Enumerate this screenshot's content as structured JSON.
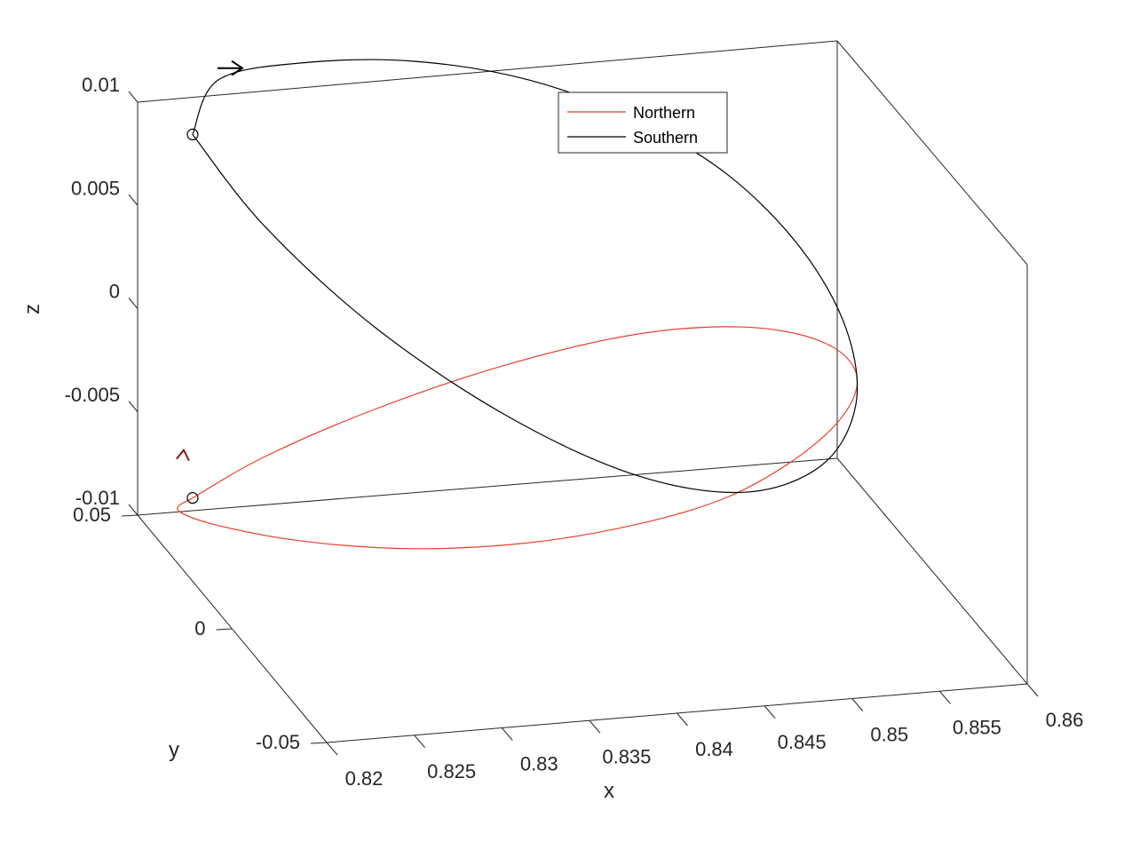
{
  "chart_data": {
    "type": "line",
    "projection": "3d",
    "xlabel": "x",
    "ylabel": "y",
    "zlabel": "z",
    "xlim": [
      0.82,
      0.86
    ],
    "ylim": [
      -0.05,
      0.05
    ],
    "zlim": [
      -0.01,
      0.01
    ],
    "x_ticks": [
      "0.82",
      "0.825",
      "0.83",
      "0.835",
      "0.84",
      "0.845",
      "0.85",
      "0.855",
      "0.86"
    ],
    "y_ticks": [
      "-0.05",
      "0",
      "0.05"
    ],
    "z_ticks": [
      "-0.01",
      "-0.005",
      "0",
      "0.005",
      "0.01"
    ],
    "grid": false,
    "legend_position": "top-right",
    "series": [
      {
        "name": "Northern",
        "color": "#e8402e",
        "description_points": "approximate 3D orbit samples (x, y, z)",
        "points": [
          [
            0.8226,
            0.045,
            -0.0088
          ],
          [
            0.8253,
            0.0322,
            -0.0056
          ],
          [
            0.83,
            0.0174,
            -0.002
          ],
          [
            0.836,
            0.0039,
            0.0012
          ],
          [
            0.8423,
            -0.0066,
            0.0034
          ],
          [
            0.8479,
            -0.0124,
            0.004
          ],
          [
            0.8523,
            -0.0125,
            0.003
          ],
          [
            0.8548,
            -0.0075,
            0.0008
          ],
          [
            0.8551,
            0.0004,
            -0.002
          ],
          [
            0.8535,
            0.0095,
            -0.005
          ],
          [
            0.8503,
            0.0185,
            -0.0078
          ],
          [
            0.846,
            0.0273,
            -0.0098
          ],
          [
            0.8408,
            0.0354,
            -0.0112
          ],
          [
            0.835,
            0.0419,
            -0.0118
          ],
          [
            0.8293,
            0.0469,
            -0.0116
          ],
          [
            0.8246,
            0.0497,
            -0.0108
          ],
          [
            0.8222,
            0.049,
            -0.0098
          ],
          [
            0.8226,
            0.045,
            -0.0088
          ]
        ],
        "start_marker": [
          0.8226,
          0.045,
          -0.0088
        ],
        "direction_arrow_at": [
          0.8226,
          0.0497,
          -0.007
        ]
      },
      {
        "name": "Southern",
        "color": "#000000",
        "points": [
          [
            0.8226,
            0.045,
            0.0088
          ],
          [
            0.8246,
            0.0497,
            0.0108
          ],
          [
            0.8293,
            0.0469,
            0.0116
          ],
          [
            0.835,
            0.0419,
            0.0118
          ],
          [
            0.8408,
            0.0354,
            0.0112
          ],
          [
            0.846,
            0.0273,
            0.0098
          ],
          [
            0.8503,
            0.0185,
            0.0078
          ],
          [
            0.8535,
            0.0095,
            0.005
          ],
          [
            0.8551,
            0.0004,
            0.002
          ],
          [
            0.8548,
            -0.0075,
            -0.0008
          ],
          [
            0.8523,
            -0.0125,
            -0.003
          ],
          [
            0.8479,
            -0.0124,
            -0.004
          ],
          [
            0.8423,
            -0.0066,
            -0.0034
          ],
          [
            0.836,
            0.0039,
            -0.0012
          ],
          [
            0.83,
            0.0174,
            0.002
          ],
          [
            0.8253,
            0.0322,
            0.0056
          ],
          [
            0.8226,
            0.045,
            0.0088
          ]
        ],
        "start_marker": [
          0.8226,
          0.045,
          0.0088
        ],
        "direction_arrow_at": [
          0.826,
          0.0502,
          0.0112
        ]
      }
    ]
  }
}
